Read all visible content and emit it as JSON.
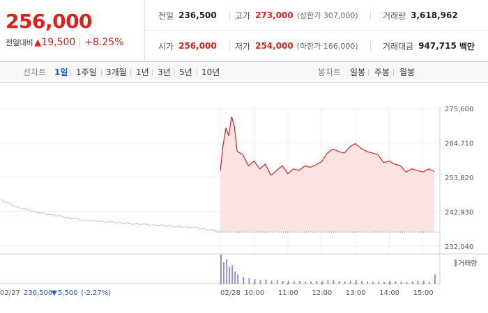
{
  "quote": {
    "current_price": "256,000",
    "change_label": "전일대비",
    "change_arrow": "▲",
    "change_amount": "19,500",
    "change_pct": "+8.25%",
    "prev_close_label": "전일",
    "prev_close": "236,500",
    "high_label": "고가",
    "high": "273,000",
    "upper_limit": "(상한가 307,000)",
    "volume_label": "거래량",
    "volume": "3,618,962",
    "open_label": "시가",
    "open": "256,000",
    "low_label": "저가",
    "low": "254,000",
    "lower_limit": "(하한가 166,000)",
    "value_label": "거래대금",
    "value": "947,715",
    "value_unit": "백만"
  },
  "toolbar": {
    "line_chart_label": "선차트",
    "periods": [
      "1일",
      "1주일",
      "3개월",
      "1년",
      "3년",
      "5년",
      "10년"
    ],
    "active_period": "1일",
    "candle_label": "봉차트",
    "candles": [
      "일봉",
      "주봉",
      "월봉"
    ]
  },
  "chart_data": {
    "type": "line",
    "title": "",
    "ylim": [
      232040,
      275600
    ],
    "y_ticks": [
      "275,600",
      "264,710",
      "253,820",
      "242,930",
      "232,040"
    ],
    "x_ticks": [
      "02/28",
      "10:00",
      "11:00",
      "12:00",
      "13:00",
      "14:00",
      "15:00"
    ],
    "prev_day_date": "02/27",
    "prev_day_close": "236,500",
    "prev_day_change": "5,500",
    "prev_day_change_arrow": "▼",
    "prev_day_pct": "(-2.27%)",
    "volume_legend": "거래량",
    "colors": {
      "up": "#e0201b",
      "down": "#1b57d6",
      "prev_day_line": "#c8c8c8",
      "fill": "#fbe3e3",
      "volume": "#9b8ec4"
    },
    "series": [
      {
        "x": [
          "02/27 09:00",
          "02/27 09:30",
          "02/27 10:00",
          "02/27 10:30",
          "02/27 11:00",
          "02/27 11:30",
          "02/27 12:00",
          "02/27 12:30",
          "02/27 13:00",
          "02/27 13:30",
          "02/27 14:00",
          "02/27 14:30",
          "02/27 15:00",
          "02/27 15:30"
        ],
        "values": [
          246800,
          244500,
          243000,
          242000,
          241100,
          240300,
          239900,
          239500,
          239100,
          238800,
          238400,
          238100,
          237600,
          236500
        ]
      },
      {
        "x": [
          "09:00",
          "09:05",
          "09:10",
          "09:15",
          "09:20",
          "09:25",
          "09:30",
          "09:40",
          "09:50",
          "10:00",
          "10:10",
          "10:20",
          "10:30",
          "10:40",
          "10:50",
          "11:00",
          "11:10",
          "11:20",
          "11:30",
          "11:40",
          "11:50",
          "12:00",
          "12:10",
          "12:20",
          "12:30",
          "12:40",
          "12:50",
          "13:00",
          "13:10",
          "13:20",
          "13:30",
          "13:40",
          "13:50",
          "14:00",
          "14:10",
          "14:20",
          "14:30",
          "14:40",
          "14:50",
          "15:00",
          "15:10",
          "15:20"
        ],
        "values": [
          256000,
          264000,
          269500,
          267000,
          273000,
          270000,
          262000,
          261000,
          257500,
          259000,
          256500,
          258000,
          254500,
          256000,
          257500,
          255000,
          256500,
          256000,
          257500,
          257000,
          257800,
          258800,
          261500,
          262800,
          262000,
          261500,
          263500,
          264500,
          263000,
          262000,
          261500,
          261000,
          258500,
          259000,
          258000,
          257500,
          255500,
          256500,
          256000,
          255500,
          256500,
          255700
        ]
      }
    ],
    "volume": {
      "x": [
        "09:00",
        "09:05",
        "09:10",
        "09:15",
        "09:20",
        "09:25",
        "09:30",
        "09:40",
        "09:50",
        "10:00",
        "10:10",
        "10:20",
        "10:30",
        "10:40",
        "10:50",
        "11:00",
        "11:10",
        "11:20",
        "11:30",
        "11:40",
        "11:50",
        "12:00",
        "12:10",
        "12:20",
        "12:30",
        "12:40",
        "12:50",
        "13:00",
        "13:10",
        "13:20",
        "13:30",
        "13:40",
        "13:50",
        "14:00",
        "14:10",
        "14:20",
        "14:30",
        "14:40",
        "14:50",
        "15:00",
        "15:10",
        "15:20"
      ],
      "values": [
        95,
        70,
        80,
        55,
        60,
        40,
        30,
        22,
        18,
        15,
        12,
        14,
        10,
        11,
        9,
        10,
        8,
        9,
        7,
        8,
        9,
        10,
        12,
        11,
        9,
        8,
        10,
        12,
        9,
        8,
        7,
        8,
        7,
        9,
        8,
        7,
        6,
        8,
        9,
        10,
        7,
        30
      ]
    }
  }
}
